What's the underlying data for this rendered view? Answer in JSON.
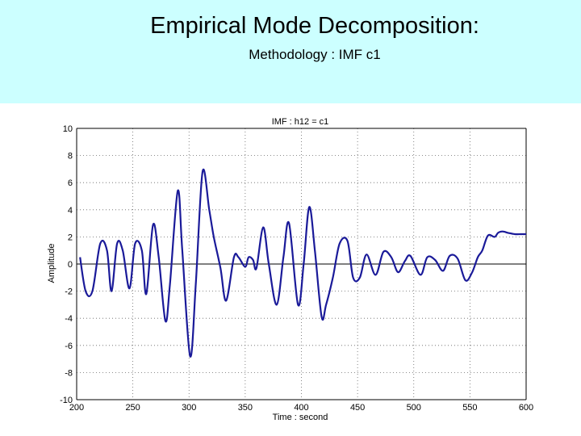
{
  "slide": {
    "title": "Empirical Mode Decomposition:",
    "subtitle": "Methodology : IMF c1"
  },
  "colors": {
    "header_bg": "#ccffff",
    "series": "#1a1a99"
  },
  "chart_data": {
    "type": "line",
    "title": "IMF : h12 = c1",
    "xlabel": "Time : second",
    "ylabel": "Amplitude",
    "xlim": [
      200,
      600
    ],
    "ylim": [
      -10,
      10
    ],
    "xticks": [
      200,
      250,
      300,
      350,
      400,
      450,
      500,
      550,
      600
    ],
    "yticks": [
      -10,
      -8,
      -6,
      -4,
      -2,
      0,
      2,
      4,
      6,
      8,
      10
    ],
    "grid": "dotted",
    "zero_line": true,
    "series": [
      {
        "x": [
          203,
          208,
          214,
          221,
          227,
          231,
          236,
          241,
          247,
          252,
          258,
          262,
          268,
          273,
          279,
          283,
          290,
          294,
          301,
          306,
          312,
          318,
          322,
          328,
          333,
          340,
          344,
          350,
          353,
          357,
          360,
          366,
          371,
          378,
          384,
          389,
          397,
          402,
          407,
          412,
          418,
          422,
          428,
          434,
          441,
          446,
          452,
          458,
          466,
          473,
          480,
          486,
          492,
          497,
          506,
          512,
          519,
          526,
          532,
          539,
          546,
          552,
          557,
          561,
          566,
          572,
          575,
          579,
          584,
          590,
          595,
          598,
          600
        ],
        "y": [
          0.5,
          -2.0,
          -2.0,
          1.5,
          1.0,
          -2.0,
          1.5,
          1.0,
          -1.8,
          1.5,
          1.0,
          -2.2,
          2.9,
          0.5,
          -4.2,
          -1.5,
          5.4,
          1.0,
          -6.8,
          -1.5,
          6.8,
          4.0,
          2.0,
          -0.3,
          -2.7,
          0.5,
          0.5,
          -0.2,
          0.5,
          0.3,
          -0.3,
          2.7,
          0.0,
          -3.0,
          0.5,
          3.0,
          -3.0,
          0.0,
          4.2,
          1.0,
          -3.9,
          -3.0,
          -1.0,
          1.5,
          1.7,
          -1.0,
          -1.0,
          0.7,
          -0.8,
          0.9,
          0.5,
          -0.6,
          0.2,
          0.6,
          -0.8,
          0.5,
          0.3,
          -0.5,
          0.6,
          0.4,
          -1.2,
          -0.6,
          0.5,
          1.0,
          2.1,
          2.0,
          2.3,
          2.4,
          2.3,
          2.2,
          2.2,
          2.2,
          2.2
        ]
      }
    ]
  }
}
